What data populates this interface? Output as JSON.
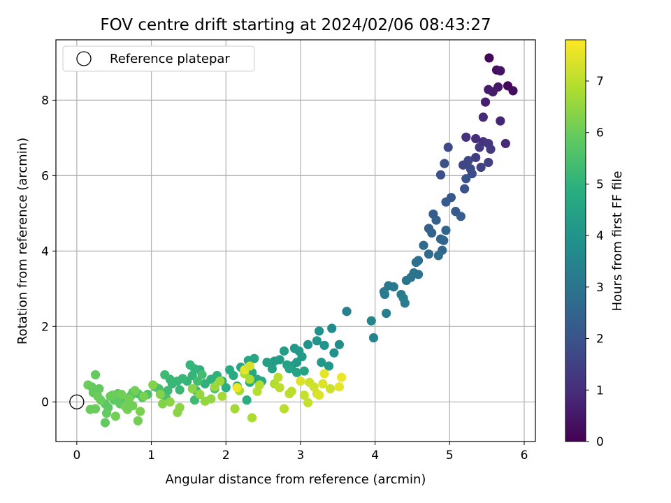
{
  "chart_data": {
    "type": "scatter",
    "title": "FOV centre drift starting at 2024/02/06 08:43:27",
    "xlabel": "Angular distance from reference (arcmin)",
    "ylabel": "Rotation from reference (arcmin)",
    "xlim": [
      -0.28,
      6.15
    ],
    "ylim": [
      -1.05,
      9.6
    ],
    "x_ticks": [
      0,
      1,
      2,
      3,
      4,
      5,
      6
    ],
    "y_ticks": [
      0,
      2,
      4,
      6,
      8
    ],
    "grid": true,
    "legend_position": "top-left",
    "legend_label": "Reference platepar",
    "reference_point": {
      "x": 0,
      "y": 0
    },
    "colorbar": {
      "label": "Hours from first FF file",
      "range": [
        0,
        7.8
      ],
      "ticks": [
        0,
        1,
        2,
        3,
        4,
        5,
        6,
        7
      ],
      "colormap": "viridis"
    },
    "points": [
      [
        5.53,
        9.12,
        0.1
      ],
      [
        5.63,
        8.8,
        0.3
      ],
      [
        5.68,
        8.78,
        0.4
      ],
      [
        5.78,
        8.38,
        0.2
      ],
      [
        5.85,
        8.25,
        0.3
      ],
      [
        5.65,
        8.35,
        0.5
      ],
      [
        5.58,
        8.22,
        0.6
      ],
      [
        5.52,
        8.28,
        0.6
      ],
      [
        5.48,
        7.95,
        0.7
      ],
      [
        5.68,
        7.45,
        0.8
      ],
      [
        5.75,
        6.85,
        0.9
      ],
      [
        5.45,
        7.55,
        0.9
      ],
      [
        5.35,
        6.98,
        1.0
      ],
      [
        5.22,
        7.02,
        1.1
      ],
      [
        5.45,
        6.9,
        1.1
      ],
      [
        5.52,
        6.85,
        1.2
      ],
      [
        5.4,
        6.75,
        1.3
      ],
      [
        5.55,
        6.7,
        1.3
      ],
      [
        5.35,
        6.48,
        1.4
      ],
      [
        5.52,
        6.35,
        1.5
      ],
      [
        5.42,
        6.22,
        1.5
      ],
      [
        5.18,
        6.28,
        1.6
      ],
      [
        5.25,
        6.4,
        1.6
      ],
      [
        5.28,
        6.18,
        1.7
      ],
      [
        5.3,
        6.05,
        1.8
      ],
      [
        4.98,
        6.75,
        1.8
      ],
      [
        4.93,
        6.32,
        1.9
      ],
      [
        4.88,
        6.02,
        1.9
      ],
      [
        5.22,
        5.92,
        2.0
      ],
      [
        5.2,
        5.65,
        2.0
      ],
      [
        5.02,
        5.42,
        2.1
      ],
      [
        4.95,
        5.3,
        2.2
      ],
      [
        5.08,
        5.05,
        2.2
      ],
      [
        5.15,
        4.92,
        2.3
      ],
      [
        4.78,
        4.98,
        2.3
      ],
      [
        4.82,
        4.82,
        2.4
      ],
      [
        4.72,
        4.6,
        2.4
      ],
      [
        4.76,
        4.48,
        2.5
      ],
      [
        4.88,
        4.32,
        2.5
      ],
      [
        4.95,
        4.55,
        2.6
      ],
      [
        4.92,
        4.28,
        2.6
      ],
      [
        4.9,
        4.02,
        2.6
      ],
      [
        4.65,
        4.15,
        2.7
      ],
      [
        4.72,
        3.92,
        2.7
      ],
      [
        4.85,
        3.88,
        2.8
      ],
      [
        4.58,
        3.75,
        2.8
      ],
      [
        4.55,
        3.7,
        2.9
      ],
      [
        4.58,
        3.38,
        2.9
      ],
      [
        4.48,
        3.3,
        3.0
      ],
      [
        4.52,
        3.42,
        3.0
      ],
      [
        4.42,
        3.22,
        3.0
      ],
      [
        4.25,
        3.05,
        3.1
      ],
      [
        4.18,
        3.08,
        3.1
      ],
      [
        4.12,
        2.92,
        3.2
      ],
      [
        4.35,
        2.85,
        3.2
      ],
      [
        4.38,
        2.75,
        3.3
      ],
      [
        4.4,
        2.62,
        3.3
      ],
      [
        4.13,
        2.85,
        3.2
      ],
      [
        3.62,
        2.4,
        3.4
      ],
      [
        4.15,
        2.35,
        3.3
      ],
      [
        3.95,
        2.15,
        3.5
      ],
      [
        3.98,
        1.7,
        3.5
      ],
      [
        3.42,
        1.95,
        3.7
      ],
      [
        3.52,
        1.52,
        3.8
      ],
      [
        3.45,
        1.3,
        3.9
      ],
      [
        3.25,
        1.88,
        3.9
      ],
      [
        3.32,
        1.5,
        4.0
      ],
      [
        3.22,
        1.62,
        4.0
      ],
      [
        3.1,
        1.52,
        4.0
      ],
      [
        3.28,
        1.05,
        4.1
      ],
      [
        3.38,
        0.95,
        4.1
      ],
      [
        2.92,
        1.42,
        4.1
      ],
      [
        2.98,
        1.35,
        4.1
      ],
      [
        3.02,
        1.2,
        4.2
      ],
      [
        2.95,
        1.05,
        4.2
      ],
      [
        2.88,
        0.95,
        4.2
      ],
      [
        2.78,
        1.35,
        4.3
      ],
      [
        2.72,
        1.12,
        4.3
      ],
      [
        2.65,
        1.08,
        4.3
      ],
      [
        2.55,
        1.05,
        4.4
      ],
      [
        2.62,
        0.88,
        4.4
      ],
      [
        2.82,
        0.98,
        4.4
      ],
      [
        3.05,
        0.82,
        4.5
      ],
      [
        2.95,
        0.78,
        4.5
      ],
      [
        2.85,
        0.88,
        4.5
      ],
      [
        2.38,
        1.15,
        4.6
      ],
      [
        2.3,
        1.1,
        4.6
      ],
      [
        2.35,
        0.78,
        4.6
      ],
      [
        2.2,
        0.92,
        4.6
      ],
      [
        2.25,
        0.85,
        4.7
      ],
      [
        2.42,
        0.6,
        4.7
      ],
      [
        2.48,
        0.55,
        4.7
      ],
      [
        2.32,
        0.52,
        4.8
      ],
      [
        2.15,
        0.42,
        4.8
      ],
      [
        2.05,
        0.85,
        4.8
      ],
      [
        2.1,
        0.7,
        4.8
      ],
      [
        2.0,
        0.38,
        4.9
      ],
      [
        2.28,
        0.05,
        4.9
      ],
      [
        1.95,
        0.55,
        4.9
      ],
      [
        1.88,
        0.7,
        5.0
      ],
      [
        1.8,
        0.6,
        5.0
      ],
      [
        1.72,
        0.48,
        5.0
      ],
      [
        1.65,
        0.85,
        5.0
      ],
      [
        1.58,
        0.88,
        5.1
      ],
      [
        1.52,
        0.98,
        5.1
      ],
      [
        1.55,
        0.7,
        5.1
      ],
      [
        1.48,
        0.55,
        5.1
      ],
      [
        1.42,
        0.62,
        5.2
      ],
      [
        1.35,
        0.55,
        5.2
      ],
      [
        1.38,
        0.32,
        5.2
      ],
      [
        1.25,
        0.6,
        5.2
      ],
      [
        1.28,
        0.48,
        5.2
      ],
      [
        1.18,
        0.72,
        5.3
      ],
      [
        1.22,
        0.3,
        5.3
      ],
      [
        1.6,
        0.3,
        5.3
      ],
      [
        1.58,
        0.05,
        5.3
      ],
      [
        1.85,
        0.35,
        5.4
      ],
      [
        1.68,
        0.72,
        5.4
      ],
      [
        1.62,
        0.55,
        5.4
      ],
      [
        1.1,
        0.35,
        5.5
      ],
      [
        1.05,
        0.4,
        5.5
      ],
      [
        1.2,
        0.1,
        5.5
      ],
      [
        0.95,
        0.2,
        5.6
      ],
      [
        0.82,
        0.22,
        5.6
      ],
      [
        0.88,
        0.12,
        5.6
      ],
      [
        0.75,
        0.25,
        5.7
      ],
      [
        0.72,
        0.15,
        5.7
      ],
      [
        0.68,
        0.05,
        5.7
      ],
      [
        0.62,
        0.1,
        5.7
      ],
      [
        0.58,
        -0.05,
        5.8
      ],
      [
        0.5,
        0.05,
        5.8
      ],
      [
        0.55,
        0.22,
        5.8
      ],
      [
        0.42,
        -0.15,
        5.8
      ],
      [
        0.38,
        -0.05,
        5.8
      ],
      [
        0.4,
        -0.3,
        5.9
      ],
      [
        0.38,
        -0.55,
        5.9
      ],
      [
        0.3,
        0.35,
        5.9
      ],
      [
        0.25,
        0.72,
        5.9
      ],
      [
        0.22,
        0.25,
        5.9
      ],
      [
        0.2,
        0.4,
        5.9
      ],
      [
        0.18,
        -0.2,
        6.0
      ],
      [
        0.25,
        -0.18,
        6.0
      ],
      [
        0.15,
        0.45,
        6.0
      ],
      [
        0.28,
        0.15,
        6.0
      ],
      [
        0.32,
        0.05,
        6.0
      ],
      [
        0.48,
        0.18,
        6.0
      ],
      [
        0.52,
        -0.38,
        6.1
      ],
      [
        0.65,
        -0.12,
        6.1
      ],
      [
        0.7,
        0.08,
        6.1
      ],
      [
        0.78,
        0.3,
        6.1
      ],
      [
        0.82,
        -0.5,
        6.1
      ],
      [
        0.85,
        -0.25,
        6.2
      ],
      [
        0.9,
        0.15,
        6.2
      ],
      [
        0.6,
        0.2,
        6.1
      ],
      [
        0.45,
        0.15,
        6.0
      ],
      [
        0.75,
        -0.1,
        6.1
      ],
      [
        0.68,
        -0.2,
        6.1
      ],
      [
        1.02,
        0.45,
        6.3
      ],
      [
        1.12,
        0.2,
        6.3
      ],
      [
        1.15,
        -0.05,
        6.3
      ],
      [
        1.25,
        0.0,
        6.4
      ],
      [
        1.38,
        -0.15,
        6.4
      ],
      [
        1.35,
        -0.28,
        6.4
      ],
      [
        1.55,
        0.35,
        6.4
      ],
      [
        1.65,
        0.2,
        6.5
      ],
      [
        1.72,
        0.02,
        6.5
      ],
      [
        1.8,
        0.08,
        6.5
      ],
      [
        1.85,
        0.4,
        6.6
      ],
      [
        1.92,
        0.55,
        6.6
      ],
      [
        1.95,
        0.15,
        6.7
      ],
      [
        2.12,
        -0.18,
        6.7
      ],
      [
        2.18,
        0.3,
        6.7
      ],
      [
        2.25,
        0.75,
        6.8
      ],
      [
        2.32,
        0.6,
        6.8
      ],
      [
        2.35,
        -0.42,
        6.8
      ],
      [
        2.42,
        0.28,
        6.9
      ],
      [
        2.45,
        0.45,
        6.9
      ],
      [
        2.65,
        0.48,
        6.9
      ],
      [
        2.7,
        0.65,
        7.0
      ],
      [
        2.72,
        0.38,
        7.0
      ],
      [
        2.78,
        -0.18,
        7.0
      ],
      [
        2.85,
        0.22,
        7.0
      ],
      [
        2.88,
        0.28,
        7.0
      ],
      [
        3.05,
        0.18,
        7.1
      ],
      [
        3.1,
        -0.02,
        7.1
      ],
      [
        3.12,
        0.52,
        7.2
      ],
      [
        3.18,
        0.4,
        7.2
      ],
      [
        3.22,
        0.22,
        7.3
      ],
      [
        3.25,
        0.18,
        7.4
      ],
      [
        3.3,
        0.48,
        7.4
      ],
      [
        3.32,
        0.75,
        7.5
      ],
      [
        3.52,
        0.4,
        7.5
      ],
      [
        3.55,
        0.65,
        7.6
      ],
      [
        2.15,
        0.38,
        7.6
      ],
      [
        2.25,
        0.85,
        7.5
      ],
      [
        3.0,
        0.55,
        7.4
      ],
      [
        2.32,
        0.95,
        7.3
      ],
      [
        3.4,
        0.35,
        7.2
      ]
    ]
  }
}
